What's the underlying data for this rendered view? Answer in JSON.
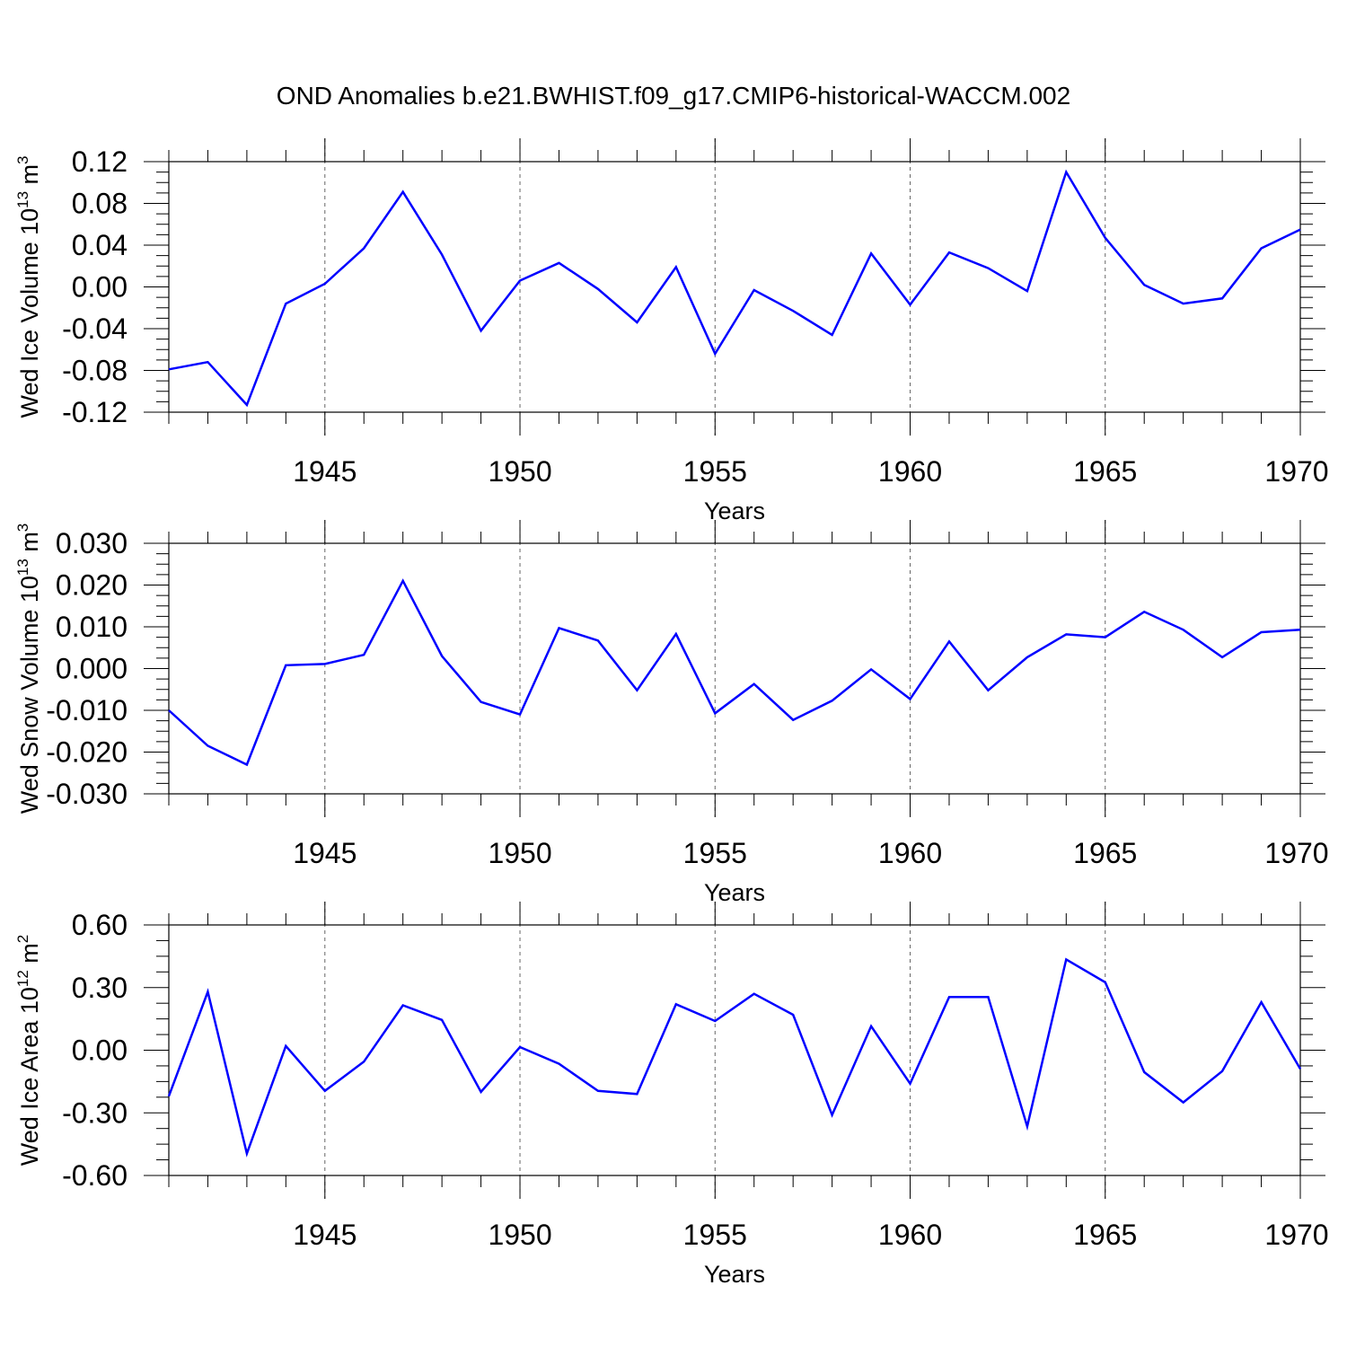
{
  "title": "OND Anomalies b.e21.BWHIST.f09_g17.CMIP6-historical-WACCM.002",
  "colors": {
    "line": "#0000ff",
    "axis": "#000000",
    "grid": "#666666"
  },
  "chart_data": [
    {
      "type": "line",
      "title": "",
      "xlabel": "Years",
      "ylabel": "Wed Ice Volume 10",
      "ylabel_exp": "13",
      "ylabel_unit": " m",
      "ylabel_unit_exp": "3",
      "xlim": [
        1941,
        1970
      ],
      "ylim": [
        -0.12,
        0.12
      ],
      "xticks": [
        1945,
        1950,
        1955,
        1960,
        1965,
        1970
      ],
      "xtick_labels": [
        "1945",
        "1950",
        "1955",
        "1960",
        "1965",
        "1970"
      ],
      "yticks": [
        -0.12,
        -0.08,
        -0.04,
        0.0,
        0.04,
        0.08,
        0.12
      ],
      "ytick_labels": [
        "-0.12",
        "-0.08",
        "-0.04",
        "0.00",
        "0.04",
        "0.08",
        "0.12"
      ],
      "grid": "vertical dashed at major x ticks",
      "x": [
        1941,
        1942,
        1943,
        1944,
        1945,
        1946,
        1947,
        1948,
        1949,
        1950,
        1951,
        1952,
        1953,
        1954,
        1955,
        1956,
        1957,
        1958,
        1959,
        1960,
        1961,
        1962,
        1963,
        1964,
        1965,
        1966,
        1967,
        1968,
        1969,
        1970
      ],
      "series": [
        {
          "values": [
            -0.079,
            -0.072,
            -0.113,
            -0.016,
            0.003,
            0.037,
            0.091,
            0.031,
            -0.042,
            0.006,
            0.023,
            -0.002,
            -0.034,
            0.019,
            -0.064,
            -0.003,
            -0.023,
            -0.046,
            0.032,
            -0.017,
            0.033,
            0.018,
            -0.004,
            0.11,
            0.047,
            0.002,
            -0.016,
            -0.011,
            0.037,
            0.055
          ]
        }
      ]
    },
    {
      "type": "line",
      "title": "",
      "xlabel": "Years",
      "ylabel": "Wed Snow Volume 10",
      "ylabel_exp": "13",
      "ylabel_unit": " m",
      "ylabel_unit_exp": "3",
      "xlim": [
        1941,
        1970
      ],
      "ylim": [
        -0.03,
        0.03
      ],
      "xticks": [
        1945,
        1950,
        1955,
        1960,
        1965,
        1970
      ],
      "xtick_labels": [
        "1945",
        "1950",
        "1955",
        "1960",
        "1965",
        "1970"
      ],
      "yticks": [
        -0.03,
        -0.02,
        -0.01,
        0.0,
        0.01,
        0.02,
        0.03
      ],
      "ytick_labels": [
        "-0.030",
        "-0.020",
        "-0.010",
        "0.000",
        "0.010",
        "0.020",
        "0.030"
      ],
      "grid": "vertical dashed at major x ticks",
      "x": [
        1941,
        1942,
        1943,
        1944,
        1945,
        1946,
        1947,
        1948,
        1949,
        1950,
        1951,
        1952,
        1953,
        1954,
        1955,
        1956,
        1957,
        1958,
        1959,
        1960,
        1961,
        1962,
        1963,
        1964,
        1965,
        1966,
        1967,
        1968,
        1969,
        1970
      ],
      "series": [
        {
          "values": [
            -0.01,
            -0.0185,
            -0.023,
            0.0008,
            0.0011,
            0.0033,
            0.021,
            0.003,
            -0.008,
            -0.011,
            0.0097,
            0.0067,
            -0.0052,
            0.0083,
            -0.0107,
            -0.0037,
            -0.0123,
            -0.0077,
            -0.0002,
            -0.0073,
            0.0065,
            -0.0052,
            0.0027,
            0.0082,
            0.0075,
            0.0136,
            0.0093,
            0.0027,
            0.0087,
            0.0093
          ]
        }
      ]
    },
    {
      "type": "line",
      "title": "",
      "xlabel": "Years",
      "ylabel": "Wed Ice Area 10",
      "ylabel_exp": "12",
      "ylabel_unit": " m",
      "ylabel_unit_exp": "2",
      "xlim": [
        1941,
        1970
      ],
      "ylim": [
        -0.6,
        0.6
      ],
      "xticks": [
        1945,
        1950,
        1955,
        1960,
        1965,
        1970
      ],
      "xtick_labels": [
        "1945",
        "1950",
        "1955",
        "1960",
        "1965",
        "1970"
      ],
      "yticks": [
        -0.6,
        -0.3,
        0.0,
        0.3,
        0.6
      ],
      "ytick_labels": [
        "-0.60",
        "-0.30",
        "0.00",
        "0.30",
        "0.60"
      ],
      "grid": "vertical dashed at major x ticks",
      "x": [
        1941,
        1942,
        1943,
        1944,
        1945,
        1946,
        1947,
        1948,
        1949,
        1950,
        1951,
        1952,
        1953,
        1954,
        1955,
        1956,
        1957,
        1958,
        1959,
        1960,
        1961,
        1962,
        1963,
        1964,
        1965,
        1966,
        1967,
        1968,
        1969,
        1970
      ],
      "series": [
        {
          "values": [
            -0.22,
            0.28,
            -0.495,
            0.02,
            -0.195,
            -0.055,
            0.215,
            0.145,
            -0.2,
            0.015,
            -0.065,
            -0.195,
            -0.21,
            0.22,
            0.14,
            0.27,
            0.17,
            -0.31,
            0.115,
            -0.16,
            0.255,
            0.255,
            -0.365,
            0.435,
            0.325,
            -0.105,
            -0.25,
            -0.1,
            0.23,
            -0.09
          ]
        }
      ]
    }
  ]
}
